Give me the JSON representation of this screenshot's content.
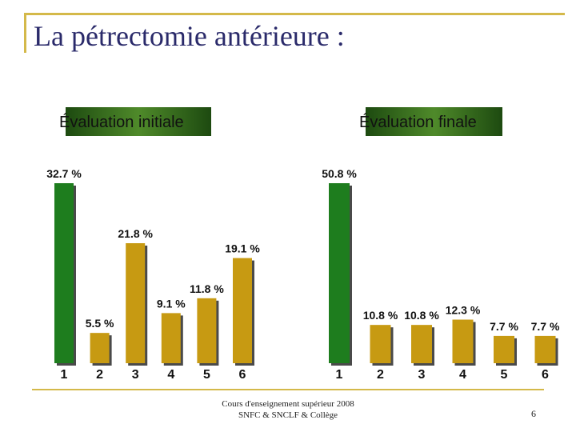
{
  "slide": {
    "title": "La pétrectomie antérieure :",
    "footer_line1": "Cours d'enseignement supérieur 2008",
    "footer_line2": "SNFC & SNCLF & Collège",
    "page_number": "6"
  },
  "colors": {
    "green_bar": "#1e7d1e",
    "gold_bar": "#c79a12",
    "frame_gold": "#d4b94a",
    "title_text": "#2a2a6a"
  },
  "chart_data": [
    {
      "type": "bar",
      "title": "Évaluation initiale",
      "categories": [
        "1",
        "2",
        "3",
        "4",
        "5",
        "6"
      ],
      "values": [
        32.7,
        5.5,
        21.8,
        9.1,
        11.8,
        19.1
      ],
      "data_labels": [
        "32.7 %",
        "5.5 %",
        "21.8 %",
        "9.1 %",
        "11.8 %",
        "19.1 %"
      ],
      "xlabel": "",
      "ylabel": "",
      "ylim": [
        0,
        34
      ]
    },
    {
      "type": "bar",
      "title": "Évaluation finale",
      "categories": [
        "1",
        "2",
        "3",
        "4",
        "5",
        "6"
      ],
      "values": [
        50.8,
        10.8,
        10.8,
        12.3,
        7.7,
        7.7
      ],
      "data_labels": [
        "50.8 %",
        "10.8 %",
        "10.8 %",
        "12.3 %",
        "7.7 %",
        "7.7 %"
      ],
      "xlabel": "",
      "ylabel": "",
      "ylim": [
        0,
        52
      ]
    }
  ]
}
